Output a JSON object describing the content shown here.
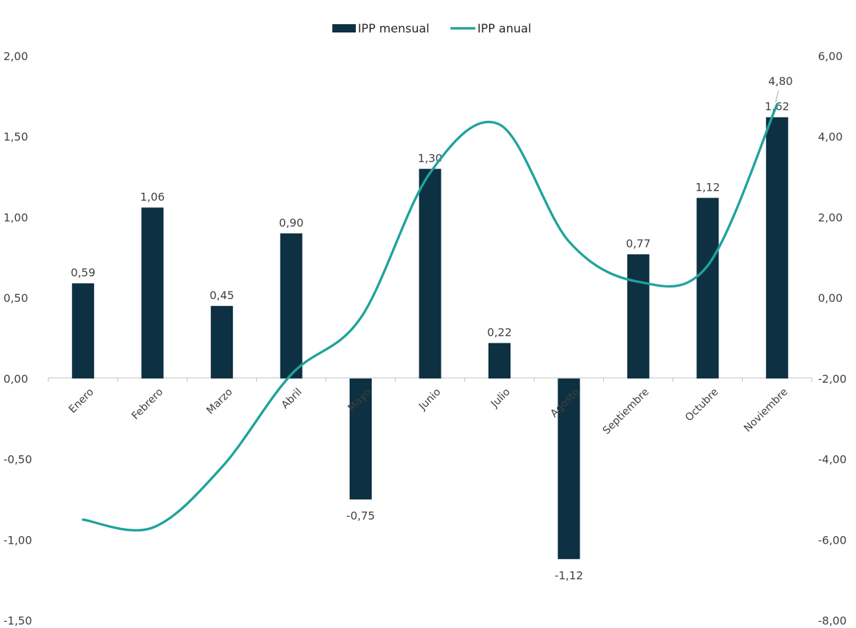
{
  "chart_data": {
    "type": "bar",
    "categories": [
      "Enero",
      "Febrero",
      "Marzo",
      "Abril",
      "Mayo",
      "Junio",
      "Julio",
      "Agosto",
      "Septiembre",
      "Octubre",
      "Noviembre"
    ],
    "series": [
      {
        "name": "IPP mensual",
        "kind": "bar",
        "axis": "left",
        "color": "#0d3042",
        "values": [
          0.59,
          1.06,
          0.45,
          0.9,
          -0.75,
          1.3,
          0.22,
          -1.12,
          0.77,
          1.12,
          1.62
        ],
        "labels": [
          "0,59",
          "1,06",
          "0,45",
          "0,90",
          "-0,75",
          "1,30",
          "0,22",
          "-1,12",
          "0,77",
          "1,12",
          "1,62"
        ]
      },
      {
        "name": "IPP anual",
        "kind": "line",
        "axis": "right",
        "color": "#1fa39c",
        "smooth": true,
        "values": [
          -5.5,
          -5.7,
          -4.2,
          -1.9,
          -0.5,
          3.1,
          4.3,
          1.4,
          0.4,
          0.8,
          4.8
        ],
        "labels": [
          null,
          null,
          null,
          null,
          null,
          null,
          null,
          null,
          null,
          null,
          "4,80"
        ]
      }
    ],
    "y_left": {
      "min": -1.5,
      "max": 2.0,
      "step": 0.5,
      "tick_labels": [
        "-1,50",
        "-1,00",
        "-0,50",
        "0,00",
        "0,50",
        "1,00",
        "1,50",
        "2,00"
      ]
    },
    "y_right": {
      "min": -8.0,
      "max": 6.0,
      "step": 2.0,
      "tick_labels": [
        "-8,00",
        "-6,00",
        "-4,00",
        "-2,00",
        "0,00",
        "2,00",
        "4,00",
        "6,00"
      ]
    },
    "legend": {
      "position": "top",
      "items": [
        "IPP mensual",
        "IPP anual"
      ]
    },
    "grid": false
  }
}
